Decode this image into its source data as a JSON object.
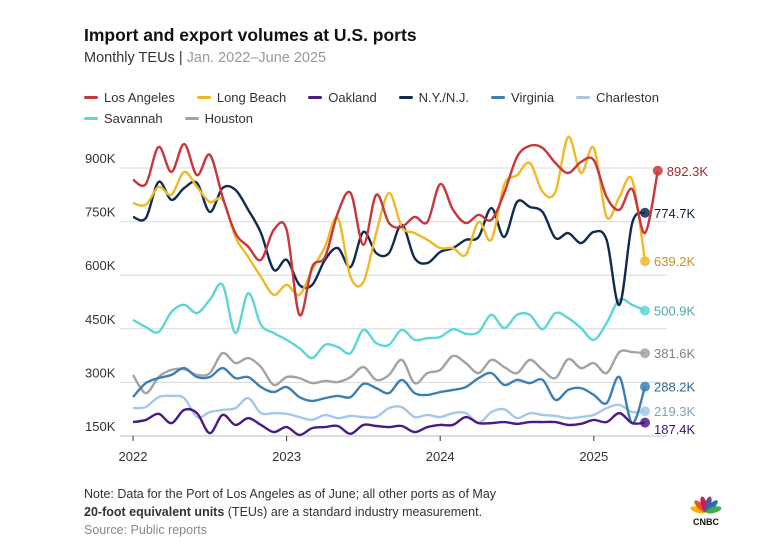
{
  "title": "Import and export volumes at U.S. ports",
  "subtitle": {
    "main": "Monthly TEUs",
    "separator": " | ",
    "range": "Jan. 2022–June 2025"
  },
  "notes": {
    "note": "Note: Data for the Port of Los Angeles as of June; all other ports as of May",
    "definition_bold": "20-foot equivalent units",
    "definition_rest": " (TEUs) are a standard industry measurement.",
    "source": "Source: Public reports"
  },
  "logo": "CNBC",
  "chart_data": {
    "type": "line",
    "title": "Import and export volumes at U.S. ports",
    "x_start": "2022-01",
    "x_ticks": [
      "2022",
      "2023",
      "2024",
      "2025"
    ],
    "y_ticks": [
      150,
      300,
      450,
      600,
      750,
      900
    ],
    "y_tick_labels": [
      "150K",
      "300K",
      "450K",
      "600K",
      "750K",
      "900K"
    ],
    "ylim": [
      150,
      900
    ],
    "y_unit": "thousand TEUs",
    "grid": true,
    "legend_placement": "top",
    "series": [
      {
        "name": "Los Angeles",
        "color": "#c8373c",
        "end_label": "892.3K",
        "values": [
          867,
          855,
          959,
          889,
          967,
          880,
          937,
          819,
          718,
          680,
          643,
          727,
          727,
          489,
          623,
          651,
          774,
          830,
          685,
          825,
          746,
          735,
          763,
          749,
          855,
          783,
          746,
          769,
          755,
          830,
          931,
          962,
          956,
          914,
          886,
          917,
          922,
          819,
          783,
          841,
          718,
          892.3
        ]
      },
      {
        "name": "Long Beach",
        "color": "#f0b92a",
        "end_label": "639.2K",
        "values": [
          802,
          797,
          847,
          825,
          889,
          847,
          805,
          811,
          707,
          651,
          595,
          545,
          573,
          545,
          615,
          680,
          760,
          595,
          581,
          718,
          830,
          735,
          718,
          699,
          676,
          676,
          657,
          749,
          699,
          853,
          880,
          914,
          833,
          833,
          987,
          886,
          956,
          763,
          819,
          867,
          639.2
        ]
      },
      {
        "name": "Oakland",
        "color": "#4b1a85",
        "end_label": "187.4K",
        "values": [
          189,
          195,
          212,
          186,
          223,
          214,
          158,
          209,
          181,
          200,
          181,
          161,
          175,
          153,
          172,
          175,
          178,
          156,
          181,
          178,
          175,
          178,
          161,
          175,
          181,
          181,
          203,
          186,
          186,
          189,
          184,
          189,
          189,
          189,
          181,
          184,
          195,
          189,
          214,
          186,
          187.4
        ]
      },
      {
        "name": "N.Y./N.J.",
        "color": "#0f2b4f",
        "end_label": "774.7K",
        "values": [
          763,
          760,
          861,
          811,
          844,
          858,
          777,
          844,
          839,
          783,
          718,
          615,
          643,
          573,
          573,
          643,
          676,
          623,
          721,
          662,
          662,
          741,
          648,
          634,
          665,
          676,
          699,
          707,
          788,
          707,
          805,
          791,
          777,
          704,
          718,
          690,
          721,
          699,
          517,
          746,
          774.7
        ]
      },
      {
        "name": "Virginia",
        "color": "#3c7fb5",
        "end_label": "288.2K",
        "values": [
          259,
          298,
          312,
          321,
          340,
          315,
          315,
          340,
          312,
          315,
          287,
          273,
          287,
          259,
          248,
          256,
          262,
          259,
          296,
          284,
          270,
          307,
          270,
          265,
          273,
          279,
          287,
          312,
          326,
          293,
          307,
          298,
          307,
          251,
          279,
          284,
          265,
          242,
          315,
          186,
          288.2
        ]
      },
      {
        "name": "Charleston",
        "color": "#a5c8e6",
        "end_label": "219.3K",
        "values": [
          228,
          231,
          259,
          262,
          256,
          203,
          217,
          223,
          228,
          256,
          214,
          214,
          212,
          203,
          195,
          209,
          200,
          206,
          203,
          203,
          228,
          231,
          203,
          209,
          203,
          214,
          214,
          186,
          217,
          225,
          200,
          214,
          209,
          206,
          200,
          203,
          209,
          228,
          237,
          217,
          219.3
        ]
      },
      {
        "name": "Savannah",
        "color": "#5fd6d6",
        "end_label": "500.9K",
        "values": [
          475,
          455,
          441,
          497,
          517,
          494,
          531,
          573,
          438,
          550,
          461,
          438,
          419,
          396,
          368,
          405,
          399,
          382,
          447,
          410,
          405,
          447,
          419,
          424,
          427,
          449,
          436,
          441,
          489,
          452,
          489,
          489,
          449,
          494,
          480,
          452,
          419,
          466,
          531,
          517,
          500.9
        ]
      },
      {
        "name": "Houston",
        "color": "#a3a3a3",
        "end_label": "381.6K",
        "values": [
          321,
          270,
          315,
          335,
          337,
          321,
          326,
          382,
          354,
          368,
          343,
          293,
          315,
          312,
          298,
          304,
          301,
          315,
          343,
          307,
          321,
          363,
          298,
          326,
          335,
          374,
          354,
          326,
          363,
          343,
          326,
          363,
          335,
          312,
          365,
          340,
          354,
          326,
          385,
          385,
          381.6
        ]
      }
    ]
  }
}
